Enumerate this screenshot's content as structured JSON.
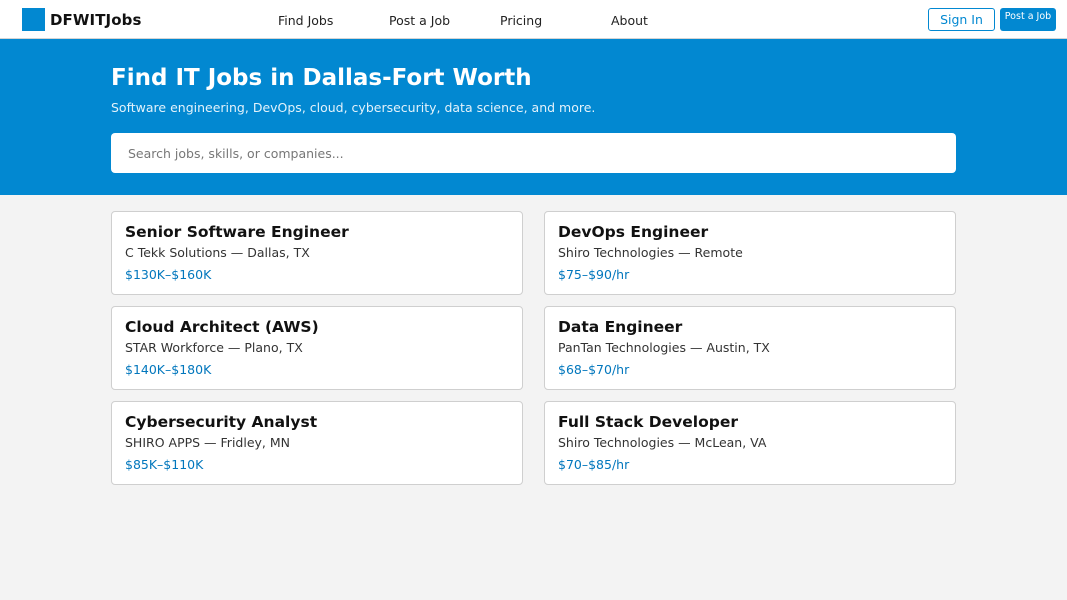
{
  "brand": {
    "name": "DFWITJobs",
    "color": "#0288d1"
  },
  "nav": {
    "items": [
      {
        "label": "Find Jobs"
      },
      {
        "label": "Post a Job"
      },
      {
        "label": "Pricing"
      },
      {
        "label": "About"
      }
    ],
    "signin_label": "Sign In",
    "post_label": "Post a Job"
  },
  "hero": {
    "title": "Find IT Jobs in Dallas-Fort Worth",
    "subtitle": "Software engineering, DevOps, cloud, cybersecurity, data science, and more.",
    "search_placeholder": "Search jobs, skills, or companies...",
    "search_value": ""
  },
  "jobs": [
    {
      "title": "Senior Software Engineer",
      "company": "C Tekk Solutions",
      "location": "Dallas, TX",
      "meta": "C Tekk Solutions — Dallas, TX",
      "pay": "$130K–$160K"
    },
    {
      "title": "DevOps Engineer",
      "company": "Shiro Technologies",
      "location": "Remote",
      "meta": "Shiro Technologies — Remote",
      "pay": "$75–$90/hr"
    },
    {
      "title": "Cloud Architect (AWS)",
      "company": "STAR Workforce",
      "location": "Plano, TX",
      "meta": "STAR Workforce — Plano, TX",
      "pay": "$140K–$180K"
    },
    {
      "title": "Data Engineer",
      "company": "PanTan Technologies",
      "location": "Austin, TX",
      "meta": "PanTan Technologies — Austin, TX",
      "pay": "$68–$70/hr"
    },
    {
      "title": "Cybersecurity Analyst",
      "company": "SHIRO APPS",
      "location": "Fridley, MN",
      "meta": "SHIRO APPS — Fridley, MN",
      "pay": "$85K–$110K"
    },
    {
      "title": "Full Stack Developer",
      "company": "Shiro Technologies",
      "location": "McLean, VA",
      "meta": "Shiro Technologies — McLean, VA",
      "pay": "$70–$85/hr"
    }
  ]
}
